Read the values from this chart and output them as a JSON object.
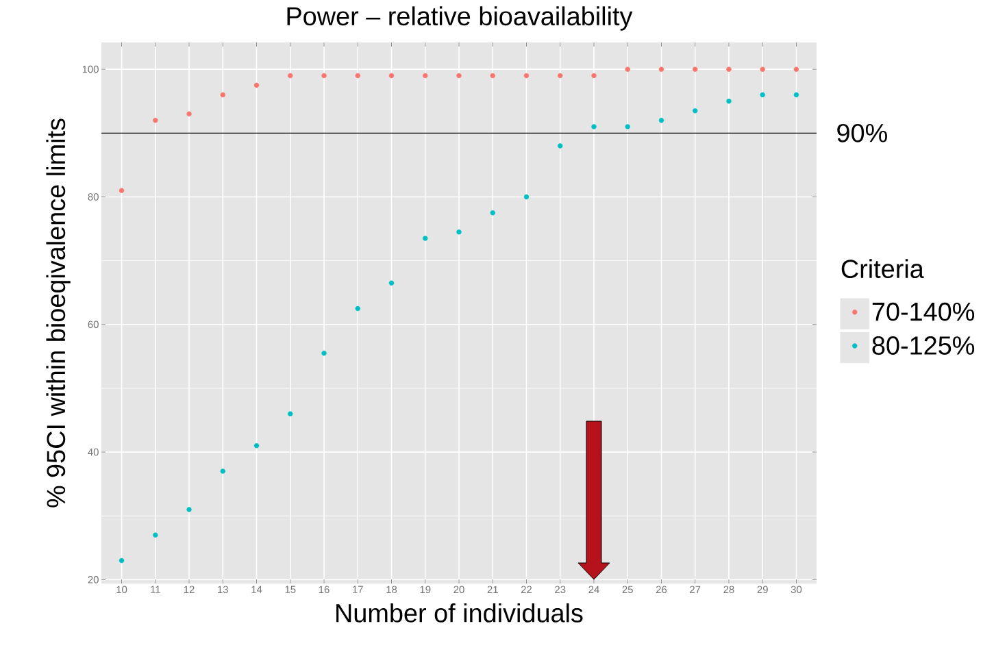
{
  "chart_data": {
    "type": "scatter",
    "title": "Power – relative bioavailability",
    "xlabel": "Number of individuals",
    "ylabel": "% 95CI within bioeqivalence limits",
    "legend_title": "Criteria",
    "x": [
      10,
      11,
      12,
      13,
      14,
      15,
      16,
      17,
      18,
      19,
      20,
      21,
      22,
      23,
      24,
      25,
      26,
      27,
      28,
      29,
      30
    ],
    "series": [
      {
        "name": "70-140%",
        "color": "#f8766d",
        "values": [
          81,
          92,
          93,
          96,
          97.5,
          99,
          99,
          99,
          99,
          99,
          99,
          99,
          99,
          99,
          99,
          100,
          100,
          100,
          100,
          100,
          100
        ]
      },
      {
        "name": "80-125%",
        "color": "#00bfc4",
        "values": [
          23,
          27,
          31,
          37,
          41,
          46,
          55.5,
          62.5,
          66.5,
          73.5,
          74.5,
          77.5,
          80,
          88,
          91,
          91,
          92,
          93.5,
          95,
          96,
          96
        ]
      }
    ],
    "xlim": [
      9.4,
      30.6
    ],
    "ylim": [
      19.4,
      104.2
    ],
    "xticks": [
      10,
      11,
      12,
      13,
      14,
      15,
      16,
      17,
      18,
      19,
      20,
      21,
      22,
      23,
      24,
      25,
      26,
      27,
      28,
      29,
      30
    ],
    "yticks": [
      20,
      40,
      60,
      80,
      100
    ],
    "ref_lines": [
      {
        "axis": "y",
        "value": 90,
        "label": "90%",
        "color": "#000000"
      }
    ],
    "grid": true,
    "legend": "right",
    "marker": "circle"
  }
}
